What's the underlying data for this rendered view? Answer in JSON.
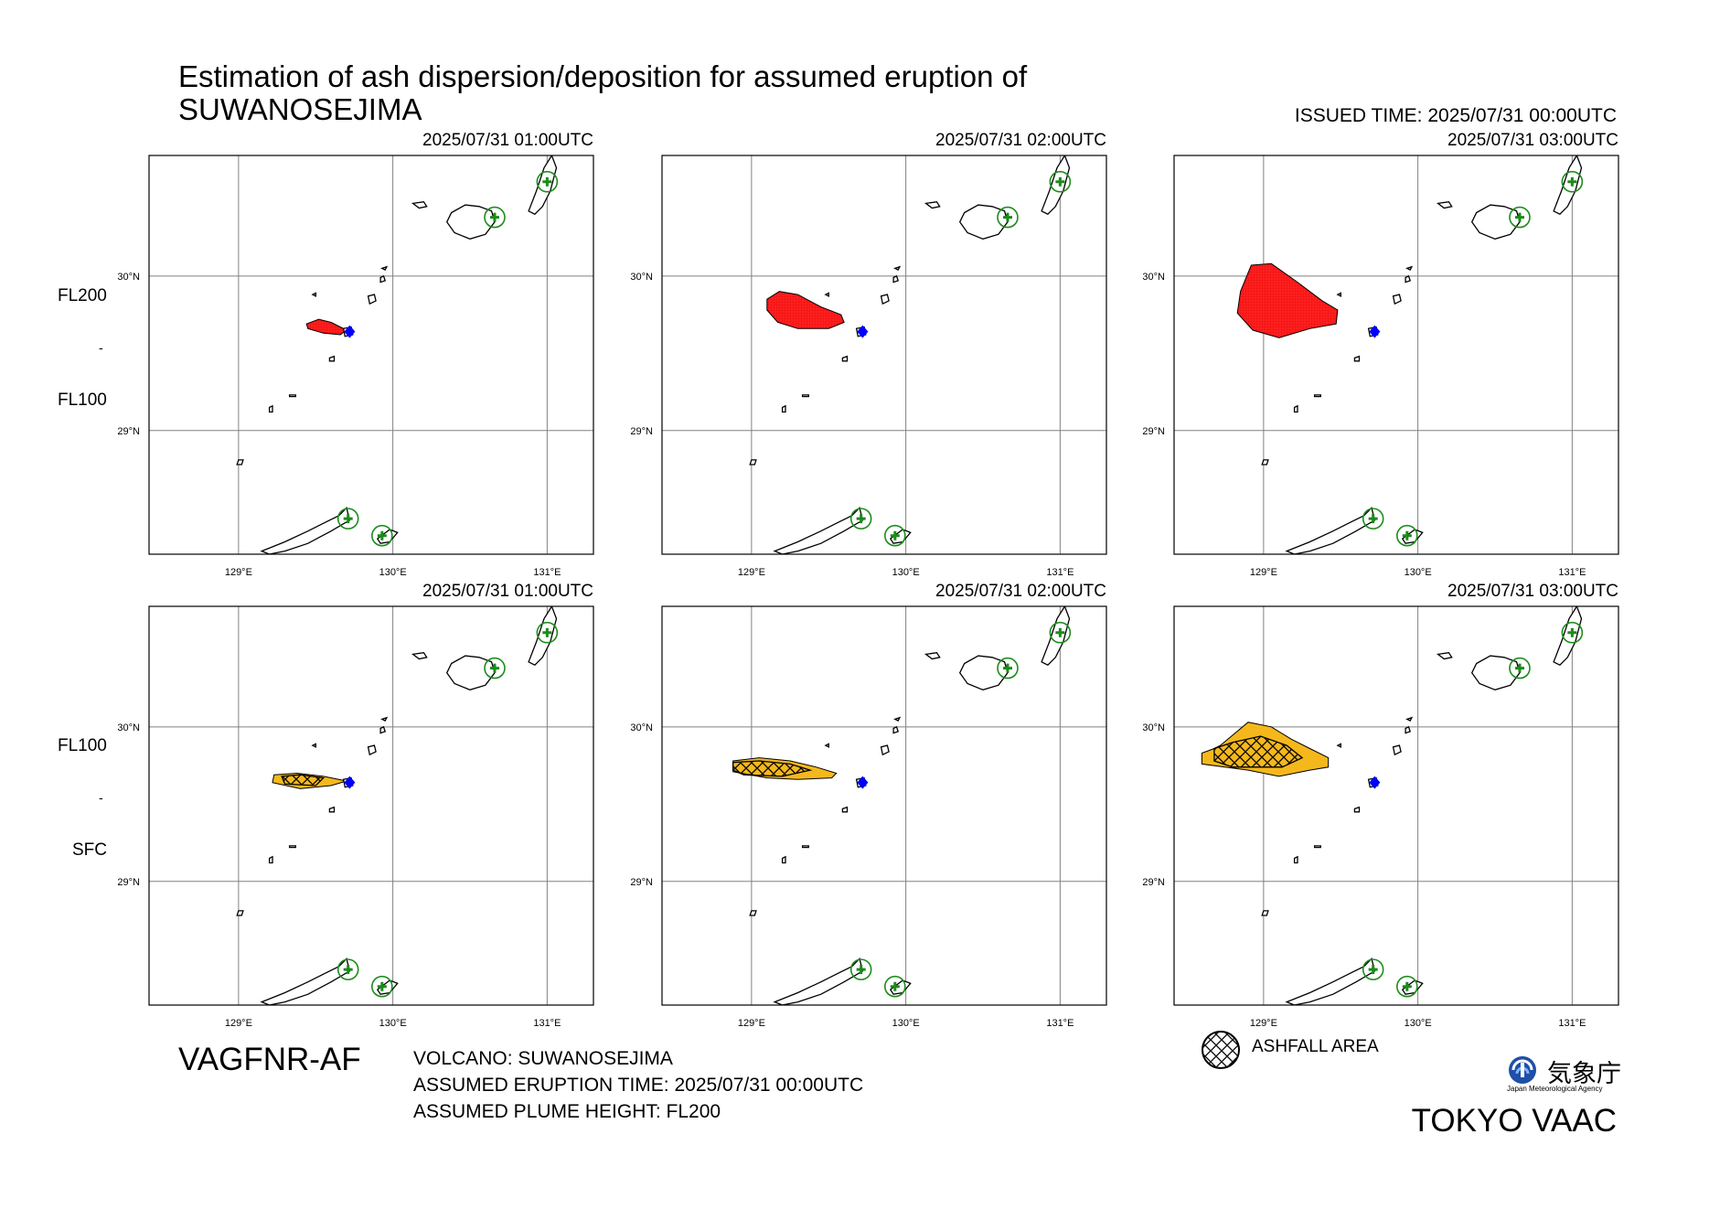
{
  "title": {
    "line1": "Estimation of ash dispersion/deposition for assumed eruption of",
    "line2": "SUWANOSEJIMA"
  },
  "issued": "ISSUED TIME: 2025/07/31 00:00UTC",
  "rows": [
    {
      "upper_level": "FL200",
      "lower_level": "FL100",
      "separator": "-"
    },
    {
      "upper_level": "FL100",
      "lower_level": "SFC",
      "separator": "-"
    }
  ],
  "panels": [
    {
      "time": "2025/07/31 01:00UTC",
      "row": 0,
      "col": 0,
      "type": "cloud"
    },
    {
      "time": "2025/07/31 02:00UTC",
      "row": 0,
      "col": 1,
      "type": "cloud"
    },
    {
      "time": "2025/07/31 03:00UTC",
      "row": 0,
      "col": 2,
      "type": "cloud"
    },
    {
      "time": "2025/07/31 01:00UTC",
      "row": 1,
      "col": 0,
      "type": "deposit"
    },
    {
      "time": "2025/07/31 02:00UTC",
      "row": 1,
      "col": 1,
      "type": "deposit"
    },
    {
      "time": "2025/07/31 03:00UTC",
      "row": 1,
      "col": 2,
      "type": "deposit"
    }
  ],
  "axes": {
    "lon_ticks": [
      "129°E",
      "130°E",
      "131°E"
    ],
    "lat_ticks": [
      "30°N",
      "29°N"
    ]
  },
  "plumes": {
    "cloud": [
      [
        [
          129.44,
          29.69
        ],
        [
          129.52,
          29.72
        ],
        [
          129.6,
          29.7
        ],
        [
          129.7,
          29.65
        ],
        [
          129.66,
          29.62
        ],
        [
          129.55,
          29.63
        ],
        [
          129.45,
          29.66
        ]
      ],
      [
        [
          129.1,
          29.85
        ],
        [
          129.18,
          29.9
        ],
        [
          129.3,
          29.88
        ],
        [
          129.45,
          29.8
        ],
        [
          129.58,
          29.75
        ],
        [
          129.6,
          29.7
        ],
        [
          129.5,
          29.66
        ],
        [
          129.3,
          29.66
        ],
        [
          129.17,
          29.7
        ],
        [
          129.1,
          29.78
        ]
      ],
      [
        [
          128.85,
          29.9
        ],
        [
          128.92,
          30.07
        ],
        [
          129.05,
          30.08
        ],
        [
          129.22,
          29.96
        ],
        [
          129.38,
          29.84
        ],
        [
          129.48,
          29.78
        ],
        [
          129.47,
          29.69
        ],
        [
          129.3,
          29.66
        ],
        [
          129.1,
          29.6
        ],
        [
          128.93,
          29.65
        ],
        [
          128.83,
          29.76
        ]
      ]
    ],
    "ashfall_outer": [
      [
        [
          129.23,
          29.69
        ],
        [
          129.38,
          29.7
        ],
        [
          129.55,
          29.68
        ],
        [
          129.7,
          29.65
        ],
        [
          129.6,
          29.62
        ],
        [
          129.4,
          29.6
        ],
        [
          129.22,
          29.64
        ]
      ],
      [
        [
          128.88,
          29.78
        ],
        [
          129.05,
          29.8
        ],
        [
          129.25,
          29.78
        ],
        [
          129.42,
          29.74
        ],
        [
          129.55,
          29.7
        ],
        [
          129.52,
          29.67
        ],
        [
          129.3,
          29.66
        ],
        [
          129.1,
          29.67
        ],
        [
          128.88,
          29.71
        ]
      ],
      [
        [
          128.6,
          29.83
        ],
        [
          128.68,
          29.86
        ],
        [
          128.72,
          29.88
        ],
        [
          128.9,
          30.03
        ],
        [
          129.05,
          30.0
        ],
        [
          129.18,
          29.92
        ],
        [
          129.3,
          29.86
        ],
        [
          129.42,
          29.8
        ],
        [
          129.42,
          29.74
        ],
        [
          129.3,
          29.72
        ],
        [
          129.1,
          29.68
        ],
        [
          128.9,
          29.72
        ],
        [
          128.6,
          29.76
        ]
      ]
    ],
    "ashfall_hatch": [
      [
        [
          129.28,
          29.68
        ],
        [
          129.4,
          29.69
        ],
        [
          129.55,
          29.67
        ],
        [
          129.5,
          29.62
        ],
        [
          129.3,
          29.63
        ]
      ],
      [
        [
          128.88,
          29.77
        ],
        [
          129.05,
          29.78
        ],
        [
          129.25,
          29.76
        ],
        [
          129.38,
          29.72
        ],
        [
          129.2,
          29.68
        ],
        [
          128.95,
          29.69
        ],
        [
          128.88,
          29.72
        ]
      ],
      [
        [
          128.68,
          29.86
        ],
        [
          128.8,
          29.9
        ],
        [
          128.98,
          29.94
        ],
        [
          129.15,
          29.88
        ],
        [
          129.25,
          29.8
        ],
        [
          129.12,
          29.74
        ],
        [
          128.95,
          29.74
        ],
        [
          128.8,
          29.74
        ],
        [
          128.68,
          29.78
        ]
      ]
    ]
  },
  "volcano": {
    "lon": 129.72,
    "lat": 29.64
  },
  "legend": {
    "ashfall": "ASHFALL AREA"
  },
  "footer": {
    "code": "VAGFNR-AF",
    "volcano": "VOLCANO: SUWANOSEJIMA",
    "eruption_time": "ASSUMED ERUPTION TIME: 2025/07/31 00:00UTC",
    "plume_height": "ASSUMED PLUME HEIGHT: FL200",
    "agency_ja": "気象庁",
    "agency_en": "Japan Meteorological Agency",
    "vaac": "TOKYO VAAC"
  },
  "colors": {
    "cloud": "#ff2020",
    "ashfall": "#f5b81c",
    "volcano_mark": "#0000ff",
    "airport_mark": "#1a8c1a",
    "grid": "#808080"
  }
}
